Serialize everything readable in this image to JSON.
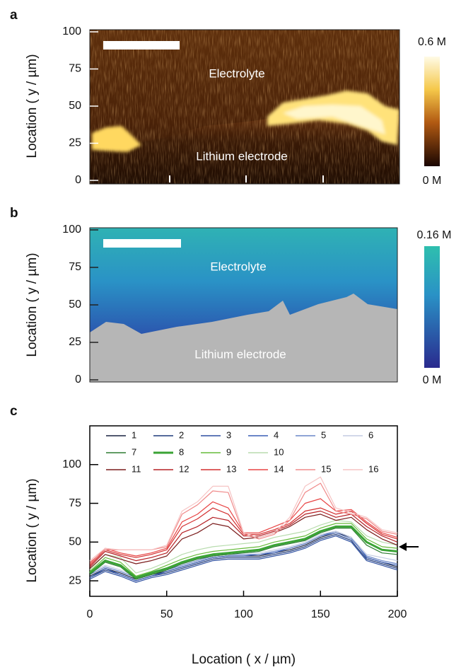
{
  "chart_data": [
    {
      "type": "heatmap",
      "panel_label": "a",
      "ylabel": "Location ( y / µm)",
      "ylim": [
        0,
        100
      ],
      "yticks": [
        0,
        25,
        50,
        75,
        100
      ],
      "annotations": [
        "Electrolyte",
        "Lithium electrode"
      ],
      "colorbar_labels": [
        "0.6 M",
        "0 M"
      ]
    },
    {
      "type": "heatmap",
      "panel_label": "b",
      "ylabel": "Location ( y / µm)",
      "ylim": [
        0,
        100
      ],
      "yticks": [
        0,
        25,
        50,
        75,
        100
      ],
      "annotations": [
        "Electrolyte",
        "Lithium electrode"
      ],
      "colorbar_labels": [
        "0.16 M",
        "0 M"
      ]
    },
    {
      "type": "line",
      "panel_label": "c",
      "xlabel": "Location ( x / µm)",
      "ylabel": "Location ( y / µm)",
      "xlim": [
        0,
        200
      ],
      "xticks": [
        0,
        50,
        100,
        150,
        200
      ],
      "ylim": [
        15,
        125
      ],
      "yticks": [
        25,
        50,
        75,
        100
      ],
      "x": [
        0,
        10,
        20,
        30,
        40,
        50,
        60,
        70,
        80,
        90,
        100,
        110,
        120,
        130,
        140,
        150,
        160,
        170,
        180,
        190,
        200
      ],
      "series": [
        {
          "name": "1",
          "color": "#1a2340",
          "values": [
            28,
            33,
            30,
            26,
            29,
            31,
            34,
            37,
            40,
            41,
            41,
            41,
            43,
            45,
            48,
            53,
            56,
            53,
            40,
            37,
            34
          ]
        },
        {
          "name": "2",
          "color": "#1f3a7a",
          "values": [
            27,
            32,
            29,
            25,
            28,
            30,
            33,
            36,
            39,
            40,
            40,
            40,
            42,
            44,
            47,
            52,
            55,
            51,
            39,
            36,
            33
          ]
        },
        {
          "name": "3",
          "color": "#2e4fa0",
          "values": [
            26,
            31,
            28,
            24,
            27,
            29,
            32,
            35,
            38,
            39,
            39,
            39,
            41,
            43,
            46,
            51,
            54,
            50,
            38,
            35,
            32
          ]
        },
        {
          "name": "4",
          "color": "#3a5fb5",
          "values": [
            27,
            33,
            29,
            25,
            28,
            31,
            34,
            37,
            40,
            41,
            41,
            42,
            43,
            46,
            49,
            54,
            57,
            53,
            40,
            37,
            35
          ]
        },
        {
          "name": "5",
          "color": "#6a86c8",
          "values": [
            29,
            34,
            31,
            27,
            30,
            32,
            35,
            38,
            41,
            42,
            42,
            42,
            44,
            46,
            49,
            54,
            56,
            52,
            41,
            38,
            36
          ]
        },
        {
          "name": "6",
          "color": "#c3cce2",
          "values": [
            30,
            35,
            32,
            28,
            31,
            33,
            36,
            39,
            42,
            43,
            43,
            43,
            45,
            47,
            50,
            55,
            57,
            53,
            42,
            40,
            38
          ]
        },
        {
          "name": "7",
          "color": "#2e7d32",
          "values": [
            29,
            37,
            34,
            26,
            29,
            32,
            36,
            39,
            41,
            42,
            43,
            44,
            47,
            49,
            51,
            56,
            59,
            59,
            48,
            43,
            42
          ]
        },
        {
          "name": "8",
          "color": "#3aa335",
          "width": 3,
          "values": [
            30,
            38,
            35,
            27,
            30,
            33,
            37,
            40,
            42,
            43,
            44,
            45,
            48,
            50,
            52,
            57,
            60,
            60,
            50,
            45,
            44
          ]
        },
        {
          "name": "9",
          "color": "#66bb3a",
          "values": [
            31,
            40,
            37,
            28,
            31,
            35,
            39,
            42,
            44,
            45,
            46,
            47,
            50,
            52,
            54,
            59,
            62,
            62,
            52,
            47,
            46
          ]
        },
        {
          "name": "10",
          "color": "#b8dcae",
          "values": [
            32,
            42,
            40,
            30,
            33,
            37,
            42,
            45,
            47,
            48,
            49,
            50,
            53,
            55,
            57,
            61,
            64,
            63,
            54,
            50,
            48
          ]
        },
        {
          "name": "11",
          "color": "#7b1d1d",
          "values": [
            33,
            42,
            39,
            36,
            38,
            41,
            52,
            56,
            62,
            60,
            52,
            53,
            56,
            60,
            66,
            68,
            64,
            66,
            58,
            52,
            48
          ]
        },
        {
          "name": "12",
          "color": "#b52025",
          "values": [
            34,
            44,
            41,
            38,
            40,
            43,
            56,
            60,
            66,
            64,
            54,
            54,
            57,
            61,
            68,
            70,
            66,
            68,
            60,
            54,
            50
          ]
        },
        {
          "name": "13",
          "color": "#d32f2f",
          "values": [
            35,
            45,
            42,
            40,
            42,
            45,
            60,
            65,
            72,
            68,
            55,
            55,
            58,
            62,
            70,
            72,
            68,
            70,
            62,
            55,
            52
          ]
        },
        {
          "name": "14",
          "color": "#e84545",
          "values": [
            36,
            46,
            43,
            41,
            43,
            46,
            63,
            68,
            76,
            72,
            56,
            56,
            60,
            64,
            75,
            78,
            70,
            71,
            63,
            56,
            53
          ]
        },
        {
          "name": "15",
          "color": "#f08a8a",
          "values": [
            37,
            45,
            45,
            45,
            45,
            47,
            68,
            74,
            83,
            82,
            55,
            52,
            55,
            64,
            82,
            88,
            70,
            68,
            65,
            57,
            55
          ]
        },
        {
          "name": "16",
          "color": "#f6c4c4",
          "values": [
            38,
            46,
            45,
            45,
            45,
            48,
            70,
            76,
            86,
            86,
            56,
            53,
            56,
            66,
            86,
            92,
            72,
            69,
            66,
            58,
            56
          ]
        }
      ]
    }
  ]
}
